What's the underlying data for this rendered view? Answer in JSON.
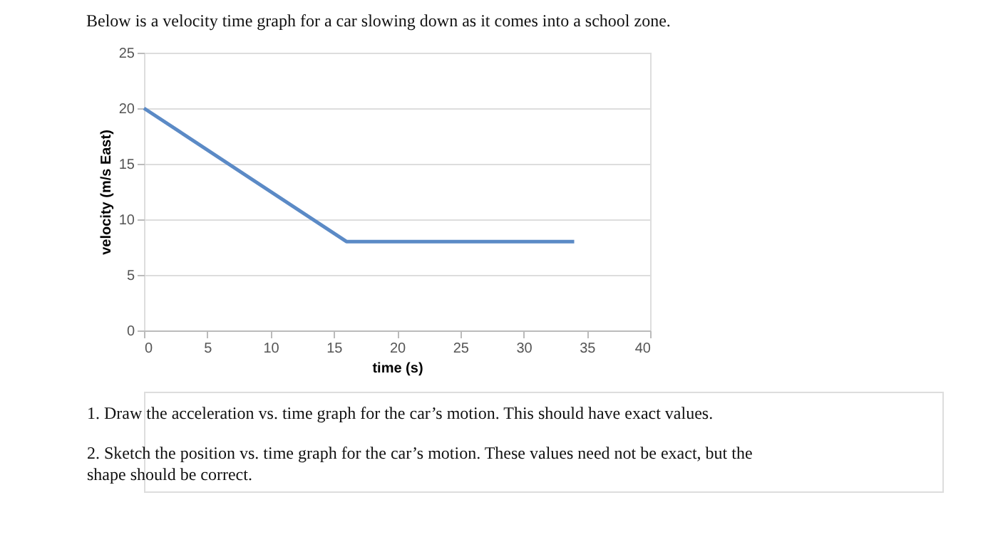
{
  "chart_data": {
    "type": "line",
    "title": "Below is a velocity time graph for a car slowing down as it comes into a school zone.",
    "xlabel": "time (s)",
    "ylabel": "velocity (m/s East)",
    "series": [
      {
        "color": "#5b8ac6",
        "x": [
          0,
          16,
          34
        ],
        "values": [
          20,
          8,
          8
        ]
      }
    ],
    "xlim": [
      0,
      40
    ],
    "xticks": [
      0,
      5,
      10,
      15,
      20,
      25,
      30,
      35,
      40
    ],
    "ylim": [
      0,
      25
    ],
    "yticks": [
      0,
      5,
      10,
      15,
      20,
      25
    ],
    "grid": "y",
    "marker": "none",
    "line_style": "solid",
    "legend": false,
    "annotations": [
      "1.        Draw the acceleration vs. time graph for the car’s motion.  This should have exact values.",
      "2.        Sketch the position vs. time graph for the car’s motion.  These values need not be exact, but the shape should be correct."
    ]
  }
}
